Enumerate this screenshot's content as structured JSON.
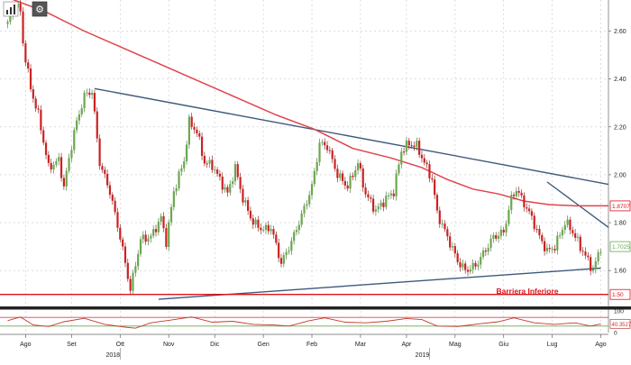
{
  "toolbar": {
    "left_icon": "bar-chart-icon",
    "right_icon": "gear-icon"
  },
  "annotations": {
    "barrier_label": "Barriera Inferiore"
  },
  "chart_data": [
    {
      "type": "candlestick",
      "title": "",
      "y_axis": {
        "ticks": [
          "2.60",
          "2.40",
          "2.20",
          "2.00",
          "1.80",
          "1.60"
        ],
        "tick_values": [
          2.6,
          2.4,
          2.2,
          2.0,
          1.8,
          1.6
        ],
        "ylim": [
          1.45,
          2.73
        ],
        "position": "right"
      },
      "x_axis": {
        "months": [
          "Ago",
          "Set",
          "Ott",
          "Nov",
          "Dic",
          "Gen",
          "Feb",
          "Mar",
          "Apr",
          "Mag",
          "Giu",
          "Lug",
          "Ago"
        ],
        "month_index": [
          7,
          25,
          44,
          63,
          81,
          100,
          119,
          138,
          156,
          175,
          194,
          213,
          232
        ],
        "years": [
          {
            "label": "2018",
            "index": 44
          },
          {
            "label": "2019",
            "index": 165
          }
        ],
        "range": [
          -3,
          235
        ]
      },
      "colors": {
        "up": "#6aa84f",
        "down": "#cc2222",
        "moving_average": "#e0434b",
        "trendline": "#3d5a7a",
        "barrier": "#e0111a",
        "grid": "#c9c9c9"
      },
      "closes_waypoints": [
        {
          "i": 0,
          "v": 2.63
        },
        {
          "i": 3,
          "v": 2.72
        },
        {
          "i": 5,
          "v": 2.68
        },
        {
          "i": 6,
          "v": 2.55
        },
        {
          "i": 9,
          "v": 2.36
        },
        {
          "i": 12,
          "v": 2.25
        },
        {
          "i": 16,
          "v": 2.03
        },
        {
          "i": 20,
          "v": 2.06
        },
        {
          "i": 22,
          "v": 1.95
        },
        {
          "i": 26,
          "v": 2.18
        },
        {
          "i": 30,
          "v": 2.33
        },
        {
          "i": 33,
          "v": 2.35
        },
        {
          "i": 36,
          "v": 2.05
        },
        {
          "i": 40,
          "v": 1.93
        },
        {
          "i": 44,
          "v": 1.74
        },
        {
          "i": 48,
          "v": 1.52
        },
        {
          "i": 52,
          "v": 1.73
        },
        {
          "i": 56,
          "v": 1.74
        },
        {
          "i": 60,
          "v": 1.82
        },
        {
          "i": 62,
          "v": 1.72
        },
        {
          "i": 65,
          "v": 1.93
        },
        {
          "i": 69,
          "v": 2.06
        },
        {
          "i": 71,
          "v": 2.22
        },
        {
          "i": 74,
          "v": 2.18
        },
        {
          "i": 77,
          "v": 2.05
        },
        {
          "i": 80,
          "v": 2.04
        },
        {
          "i": 83,
          "v": 1.98
        },
        {
          "i": 86,
          "v": 1.92
        },
        {
          "i": 89,
          "v": 2.03
        },
        {
          "i": 92,
          "v": 1.9
        },
        {
          "i": 96,
          "v": 1.8
        },
        {
          "i": 100,
          "v": 1.77
        },
        {
          "i": 103,
          "v": 1.78
        },
        {
          "i": 107,
          "v": 1.63
        },
        {
          "i": 111,
          "v": 1.72
        },
        {
          "i": 115,
          "v": 1.83
        },
        {
          "i": 119,
          "v": 1.95
        },
        {
          "i": 122,
          "v": 2.13
        },
        {
          "i": 125,
          "v": 2.12
        },
        {
          "i": 129,
          "v": 2.0
        },
        {
          "i": 133,
          "v": 1.95
        },
        {
          "i": 137,
          "v": 2.05
        },
        {
          "i": 140,
          "v": 1.92
        },
        {
          "i": 144,
          "v": 1.85
        },
        {
          "i": 148,
          "v": 1.9
        },
        {
          "i": 151,
          "v": 1.93
        },
        {
          "i": 154,
          "v": 2.1
        },
        {
          "i": 157,
          "v": 2.13
        },
        {
          "i": 160,
          "v": 2.12
        },
        {
          "i": 163,
          "v": 2.05
        },
        {
          "i": 166,
          "v": 1.98
        },
        {
          "i": 168,
          "v": 1.84
        },
        {
          "i": 172,
          "v": 1.74
        },
        {
          "i": 176,
          "v": 1.64
        },
        {
          "i": 179,
          "v": 1.6
        },
        {
          "i": 183,
          "v": 1.62
        },
        {
          "i": 186,
          "v": 1.67
        },
        {
          "i": 190,
          "v": 1.74
        },
        {
          "i": 194,
          "v": 1.76
        },
        {
          "i": 197,
          "v": 1.9
        },
        {
          "i": 199,
          "v": 1.94
        },
        {
          "i": 202,
          "v": 1.88
        },
        {
          "i": 205,
          "v": 1.82
        },
        {
          "i": 208,
          "v": 1.74
        },
        {
          "i": 211,
          "v": 1.68
        },
        {
          "i": 214,
          "v": 1.7
        },
        {
          "i": 218,
          "v": 1.8
        },
        {
          "i": 220,
          "v": 1.78
        },
        {
          "i": 223,
          "v": 1.72
        },
        {
          "i": 226,
          "v": 1.66
        },
        {
          "i": 229,
          "v": 1.6
        },
        {
          "i": 232,
          "v": 1.7
        }
      ],
      "moving_average": [
        {
          "i": 0,
          "v": 2.74
        },
        {
          "i": 15,
          "v": 2.68
        },
        {
          "i": 30,
          "v": 2.6
        },
        {
          "i": 45,
          "v": 2.53
        },
        {
          "i": 60,
          "v": 2.46
        },
        {
          "i": 75,
          "v": 2.39
        },
        {
          "i": 90,
          "v": 2.32
        },
        {
          "i": 105,
          "v": 2.25
        },
        {
          "i": 120,
          "v": 2.19
        },
        {
          "i": 135,
          "v": 2.11
        },
        {
          "i": 150,
          "v": 2.07
        },
        {
          "i": 162,
          "v": 2.03
        },
        {
          "i": 172,
          "v": 1.98
        },
        {
          "i": 182,
          "v": 1.94
        },
        {
          "i": 192,
          "v": 1.92
        },
        {
          "i": 202,
          "v": 1.89
        },
        {
          "i": 212,
          "v": 1.875
        },
        {
          "i": 222,
          "v": 1.87
        },
        {
          "i": 235,
          "v": 1.87
        }
      ],
      "trendlines": [
        {
          "name": "upper",
          "from": {
            "i": 34,
            "v": 2.36
          },
          "to": {
            "i": 235,
            "v": 1.96
          }
        },
        {
          "name": "lower",
          "from": {
            "i": 59,
            "v": 1.48
          },
          "to": {
            "i": 232,
            "v": 1.61
          }
        },
        {
          "name": "short",
          "from": {
            "i": 211,
            "v": 1.97
          },
          "to": {
            "i": 235,
            "v": 1.78
          }
        }
      ],
      "barrier": {
        "value": 1.5
      },
      "price_tags": [
        {
          "label": "1.8707",
          "value": 1.87,
          "color": "#e0111a"
        },
        {
          "label": "1.7025",
          "value": 1.7,
          "color": "#6aa84f"
        },
        {
          "label": "1.50",
          "value": 1.5,
          "color": "#e0111a"
        }
      ]
    },
    {
      "type": "line",
      "title": "",
      "y_axis": {
        "ticks": [
          "100",
          "0"
        ],
        "tick_values": [
          100,
          0
        ],
        "ylim": [
          0,
          100
        ],
        "position": "right"
      },
      "levels": [
        70,
        30
      ],
      "series": [
        {
          "values": [
            {
              "i": 0,
              "v": 55
            },
            {
              "i": 5,
              "v": 72
            },
            {
              "i": 10,
              "v": 35
            },
            {
              "i": 16,
              "v": 28
            },
            {
              "i": 22,
              "v": 50
            },
            {
              "i": 30,
              "v": 66
            },
            {
              "i": 38,
              "v": 38
            },
            {
              "i": 46,
              "v": 25
            },
            {
              "i": 50,
              "v": 20
            },
            {
              "i": 56,
              "v": 45
            },
            {
              "i": 64,
              "v": 58
            },
            {
              "i": 72,
              "v": 72
            },
            {
              "i": 80,
              "v": 48
            },
            {
              "i": 88,
              "v": 52
            },
            {
              "i": 96,
              "v": 38
            },
            {
              "i": 104,
              "v": 35
            },
            {
              "i": 110,
              "v": 30
            },
            {
              "i": 118,
              "v": 55
            },
            {
              "i": 124,
              "v": 68
            },
            {
              "i": 132,
              "v": 48
            },
            {
              "i": 140,
              "v": 45
            },
            {
              "i": 148,
              "v": 52
            },
            {
              "i": 156,
              "v": 65
            },
            {
              "i": 162,
              "v": 60
            },
            {
              "i": 168,
              "v": 30
            },
            {
              "i": 176,
              "v": 28
            },
            {
              "i": 184,
              "v": 40
            },
            {
              "i": 192,
              "v": 50
            },
            {
              "i": 198,
              "v": 68
            },
            {
              "i": 206,
              "v": 45
            },
            {
              "i": 214,
              "v": 38
            },
            {
              "i": 222,
              "v": 45
            },
            {
              "i": 228,
              "v": 30
            },
            {
              "i": 232,
              "v": 40
            }
          ]
        }
      ],
      "value_tag": {
        "label": "40.3527",
        "value": 40.3527
      }
    }
  ]
}
